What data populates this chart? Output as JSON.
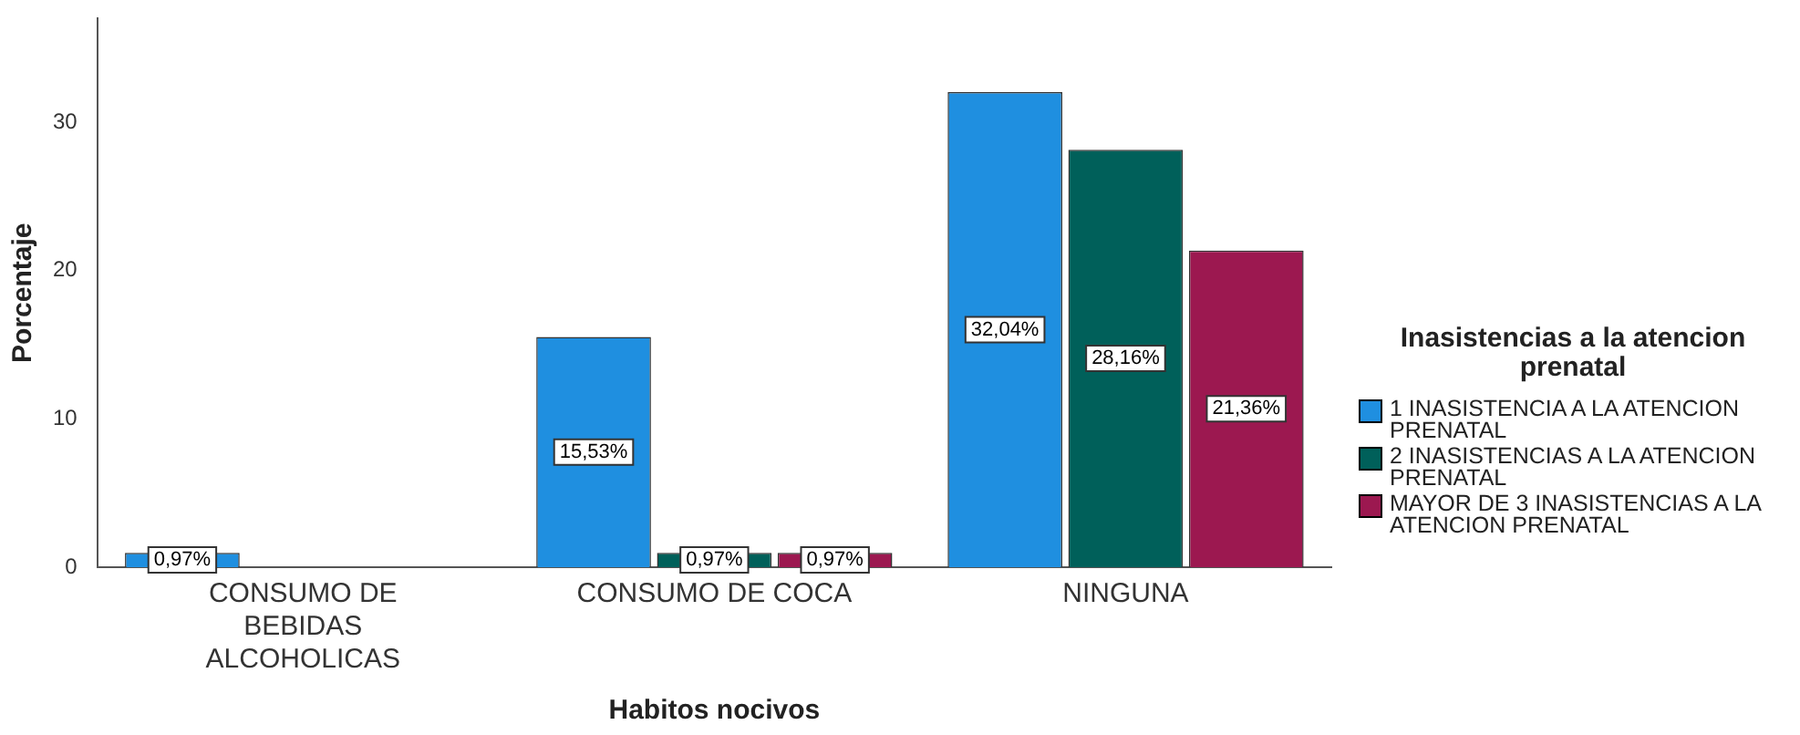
{
  "chart_data": {
    "type": "bar",
    "xlabel": "Habitos nocivos",
    "ylabel": "Porcentaje",
    "legend_title": "Inasistencias a la atencion prenatal",
    "legend": "right",
    "grid": false,
    "categories": [
      "CONSUMO DE BEBIDAS ALCOHOLICAS",
      "CONSUMO DE COCA",
      "NINGUNA"
    ],
    "ylim": [
      0,
      37
    ],
    "yticks": [
      0,
      10,
      20,
      30
    ],
    "series": [
      {
        "name": "1 INASISTENCIA A LA ATENCION PRENATAL",
        "color": "#1f8fe0",
        "values": [
          0.97,
          15.53,
          32.04
        ],
        "value_labels": [
          "0,97%",
          "15,53%",
          "32,04%"
        ]
      },
      {
        "name": "2 INASISTENCIAS A LA ATENCION PRENATAL",
        "color": "#00605a",
        "values": [
          null,
          0.97,
          28.16
        ],
        "value_labels": [
          null,
          "0,97%",
          "28,16%"
        ]
      },
      {
        "name": "MAYOR DE 3 INASISTENCIAS A LA ATENCION PRENATAL",
        "color": "#9c1850",
        "values": [
          null,
          0.97,
          21.36
        ],
        "value_labels": [
          null,
          "0,97%",
          "21,36%"
        ]
      }
    ]
  }
}
